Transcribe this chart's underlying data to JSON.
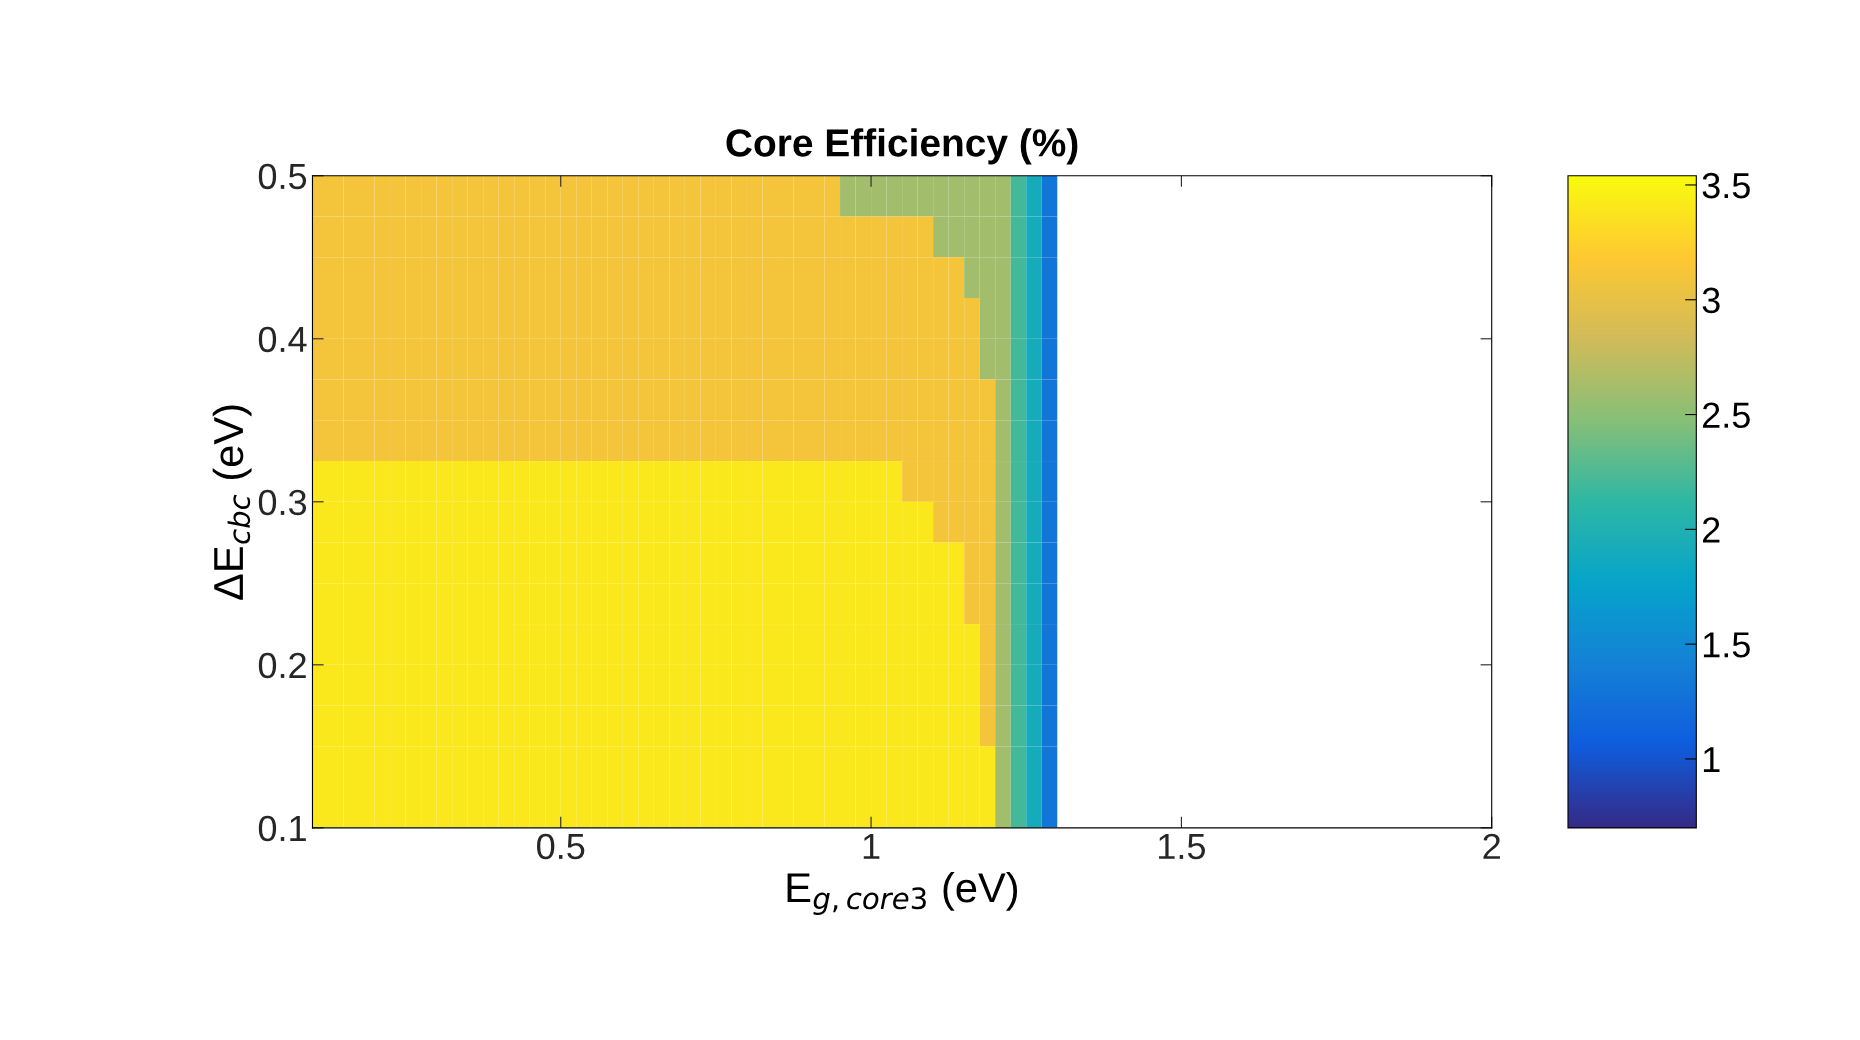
{
  "chart_data": {
    "type": "heatmap",
    "title": "Core Efficiency (%)",
    "xlabel": "E$_{g,core3}$ (eV)",
    "ylabel": "ΔE$_{cbc}$ (eV)",
    "cells": [
      [
        3.1,
        3.1,
        3.1,
        3.1,
        3.1,
        3.1,
        3.1,
        3.1,
        3.1,
        3.1,
        3.1,
        3.1,
        3.1,
        3.1,
        3.1,
        3.1,
        3.1,
        3.1,
        3.1,
        3.1,
        3.1,
        3.1,
        3.1,
        3.1,
        3.1,
        3.1,
        3.1,
        3.1,
        3.1,
        3.1,
        3.1,
        3.1,
        3.1,
        3.1,
        2.6,
        2.6,
        2.6,
        2.6,
        2.6,
        2.6,
        2.6,
        2.6,
        2.6,
        2.6,
        2.6,
        2.2,
        1.9,
        1.3,
        null,
        null,
        null,
        null,
        null,
        null,
        null,
        null,
        null,
        null,
        null,
        null,
        null,
        null,
        null,
        null,
        null,
        null,
        null,
        null,
        null,
        null,
        null,
        null,
        null,
        null,
        null,
        null
      ],
      [
        3.1,
        3.1,
        3.1,
        3.1,
        3.1,
        3.1,
        3.1,
        3.1,
        3.1,
        3.1,
        3.1,
        3.1,
        3.1,
        3.1,
        3.1,
        3.1,
        3.1,
        3.1,
        3.1,
        3.1,
        3.1,
        3.1,
        3.1,
        3.1,
        3.1,
        3.1,
        3.1,
        3.1,
        3.1,
        3.1,
        3.1,
        3.1,
        3.1,
        3.1,
        3.1,
        3.1,
        3.1,
        3.1,
        3.1,
        3.1,
        2.6,
        2.6,
        2.6,
        2.6,
        2.6,
        2.2,
        1.9,
        1.3,
        null,
        null,
        null,
        null,
        null,
        null,
        null,
        null,
        null,
        null,
        null,
        null,
        null,
        null,
        null,
        null,
        null,
        null,
        null,
        null,
        null,
        null,
        null,
        null,
        null,
        null,
        null,
        null
      ],
      [
        3.1,
        3.1,
        3.1,
        3.1,
        3.1,
        3.1,
        3.1,
        3.1,
        3.1,
        3.1,
        3.1,
        3.1,
        3.1,
        3.1,
        3.1,
        3.1,
        3.1,
        3.1,
        3.1,
        3.1,
        3.1,
        3.1,
        3.1,
        3.1,
        3.1,
        3.1,
        3.1,
        3.1,
        3.1,
        3.1,
        3.1,
        3.1,
        3.1,
        3.1,
        3.1,
        3.1,
        3.1,
        3.1,
        3.1,
        3.1,
        3.1,
        3.1,
        2.6,
        2.6,
        2.6,
        2.2,
        1.9,
        1.3,
        null,
        null,
        null,
        null,
        null,
        null,
        null,
        null,
        null,
        null,
        null,
        null,
        null,
        null,
        null,
        null,
        null,
        null,
        null,
        null,
        null,
        null,
        null,
        null,
        null,
        null,
        null,
        null
      ],
      [
        3.1,
        3.1,
        3.1,
        3.1,
        3.1,
        3.1,
        3.1,
        3.1,
        3.1,
        3.1,
        3.1,
        3.1,
        3.1,
        3.1,
        3.1,
        3.1,
        3.1,
        3.1,
        3.1,
        3.1,
        3.1,
        3.1,
        3.1,
        3.1,
        3.1,
        3.1,
        3.1,
        3.1,
        3.1,
        3.1,
        3.1,
        3.1,
        3.1,
        3.1,
        3.1,
        3.1,
        3.1,
        3.1,
        3.1,
        3.1,
        3.1,
        3.1,
        3.1,
        2.6,
        2.6,
        2.2,
        1.9,
        1.3,
        null,
        null,
        null,
        null,
        null,
        null,
        null,
        null,
        null,
        null,
        null,
        null,
        null,
        null,
        null,
        null,
        null,
        null,
        null,
        null,
        null,
        null,
        null,
        null,
        null,
        null,
        null,
        null
      ],
      [
        3.1,
        3.1,
        3.1,
        3.1,
        3.1,
        3.1,
        3.1,
        3.1,
        3.1,
        3.1,
        3.1,
        3.1,
        3.1,
        3.1,
        3.1,
        3.1,
        3.1,
        3.1,
        3.1,
        3.1,
        3.1,
        3.1,
        3.1,
        3.1,
        3.1,
        3.1,
        3.1,
        3.1,
        3.1,
        3.1,
        3.1,
        3.1,
        3.1,
        3.1,
        3.1,
        3.1,
        3.1,
        3.1,
        3.1,
        3.1,
        3.1,
        3.1,
        3.1,
        2.6,
        2.6,
        2.2,
        1.9,
        1.3,
        null,
        null,
        null,
        null,
        null,
        null,
        null,
        null,
        null,
        null,
        null,
        null,
        null,
        null,
        null,
        null,
        null,
        null,
        null,
        null,
        null,
        null,
        null,
        null,
        null,
        null,
        null,
        null
      ],
      [
        3.1,
        3.1,
        3.1,
        3.1,
        3.1,
        3.1,
        3.1,
        3.1,
        3.1,
        3.1,
        3.1,
        3.1,
        3.1,
        3.1,
        3.1,
        3.1,
        3.1,
        3.1,
        3.1,
        3.1,
        3.1,
        3.1,
        3.1,
        3.1,
        3.1,
        3.1,
        3.1,
        3.1,
        3.1,
        3.1,
        3.1,
        3.1,
        3.1,
        3.1,
        3.1,
        3.1,
        3.1,
        3.1,
        3.1,
        3.1,
        3.1,
        3.1,
        3.1,
        3.1,
        2.6,
        2.2,
        1.9,
        1.3,
        null,
        null,
        null,
        null,
        null,
        null,
        null,
        null,
        null,
        null,
        null,
        null,
        null,
        null,
        null,
        null,
        null,
        null,
        null,
        null,
        null,
        null,
        null,
        null,
        null,
        null,
        null,
        null
      ],
      [
        3.1,
        3.1,
        3.1,
        3.1,
        3.1,
        3.1,
        3.1,
        3.1,
        3.1,
        3.1,
        3.1,
        3.1,
        3.1,
        3.1,
        3.1,
        3.1,
        3.1,
        3.1,
        3.1,
        3.1,
        3.1,
        3.1,
        3.1,
        3.1,
        3.1,
        3.1,
        3.1,
        3.1,
        3.1,
        3.1,
        3.1,
        3.1,
        3.1,
        3.1,
        3.1,
        3.1,
        3.1,
        3.1,
        3.1,
        3.1,
        3.1,
        3.1,
        3.1,
        3.1,
        2.6,
        2.2,
        1.9,
        1.3,
        null,
        null,
        null,
        null,
        null,
        null,
        null,
        null,
        null,
        null,
        null,
        null,
        null,
        null,
        null,
        null,
        null,
        null,
        null,
        null,
        null,
        null,
        null,
        null,
        null,
        null,
        null,
        null
      ],
      [
        3.4,
        3.4,
        3.4,
        3.4,
        3.4,
        3.4,
        3.4,
        3.4,
        3.4,
        3.4,
        3.4,
        3.4,
        3.4,
        3.4,
        3.4,
        3.4,
        3.4,
        3.4,
        3.4,
        3.4,
        3.4,
        3.4,
        3.4,
        3.4,
        3.4,
        3.4,
        3.4,
        3.4,
        3.4,
        3.4,
        3.4,
        3.4,
        3.4,
        3.4,
        3.4,
        3.4,
        3.4,
        3.4,
        3.1,
        3.1,
        3.1,
        3.1,
        3.1,
        3.1,
        2.6,
        2.2,
        1.9,
        1.3,
        null,
        null,
        null,
        null,
        null,
        null,
        null,
        null,
        null,
        null,
        null,
        null,
        null,
        null,
        null,
        null,
        null,
        null,
        null,
        null,
        null,
        null,
        null,
        null,
        null,
        null,
        null,
        null
      ],
      [
        3.4,
        3.4,
        3.4,
        3.4,
        3.4,
        3.4,
        3.4,
        3.4,
        3.4,
        3.4,
        3.4,
        3.4,
        3.4,
        3.4,
        3.4,
        3.4,
        3.4,
        3.4,
        3.4,
        3.4,
        3.4,
        3.4,
        3.4,
        3.4,
        3.4,
        3.4,
        3.4,
        3.4,
        3.4,
        3.4,
        3.4,
        3.4,
        3.4,
        3.4,
        3.4,
        3.4,
        3.4,
        3.4,
        3.4,
        3.4,
        3.1,
        3.1,
        3.1,
        3.1,
        2.6,
        2.2,
        1.9,
        1.3,
        null,
        null,
        null,
        null,
        null,
        null,
        null,
        null,
        null,
        null,
        null,
        null,
        null,
        null,
        null,
        null,
        null,
        null,
        null,
        null,
        null,
        null,
        null,
        null,
        null,
        null,
        null,
        null
      ],
      [
        3.4,
        3.4,
        3.4,
        3.4,
        3.4,
        3.4,
        3.4,
        3.4,
        3.4,
        3.4,
        3.4,
        3.4,
        3.4,
        3.4,
        3.4,
        3.4,
        3.4,
        3.4,
        3.4,
        3.4,
        3.4,
        3.4,
        3.4,
        3.4,
        3.4,
        3.4,
        3.4,
        3.4,
        3.4,
        3.4,
        3.4,
        3.4,
        3.4,
        3.4,
        3.4,
        3.4,
        3.4,
        3.4,
        3.4,
        3.4,
        3.4,
        3.4,
        3.1,
        3.1,
        2.6,
        2.2,
        1.9,
        1.3,
        null,
        null,
        null,
        null,
        null,
        null,
        null,
        null,
        null,
        null,
        null,
        null,
        null,
        null,
        null,
        null,
        null,
        null,
        null,
        null,
        null,
        null,
        null,
        null,
        null,
        null,
        null,
        null
      ],
      [
        3.4,
        3.4,
        3.4,
        3.4,
        3.4,
        3.4,
        3.4,
        3.4,
        3.4,
        3.4,
        3.4,
        3.4,
        3.4,
        3.4,
        3.4,
        3.4,
        3.4,
        3.4,
        3.4,
        3.4,
        3.4,
        3.4,
        3.4,
        3.4,
        3.4,
        3.4,
        3.4,
        3.4,
        3.4,
        3.4,
        3.4,
        3.4,
        3.4,
        3.4,
        3.4,
        3.4,
        3.4,
        3.4,
        3.4,
        3.4,
        3.4,
        3.4,
        3.1,
        3.1,
        2.6,
        2.2,
        1.9,
        1.3,
        null,
        null,
        null,
        null,
        null,
        null,
        null,
        null,
        null,
        null,
        null,
        null,
        null,
        null,
        null,
        null,
        null,
        null,
        null,
        null,
        null,
        null,
        null,
        null,
        null,
        null,
        null,
        null
      ],
      [
        3.4,
        3.4,
        3.4,
        3.4,
        3.4,
        3.4,
        3.4,
        3.4,
        3.4,
        3.4,
        3.4,
        3.4,
        3.4,
        3.4,
        3.4,
        3.4,
        3.4,
        3.4,
        3.4,
        3.4,
        3.4,
        3.4,
        3.4,
        3.4,
        3.4,
        3.4,
        3.4,
        3.4,
        3.4,
        3.4,
        3.4,
        3.4,
        3.4,
        3.4,
        3.4,
        3.4,
        3.4,
        3.4,
        3.4,
        3.4,
        3.4,
        3.4,
        3.4,
        3.1,
        2.6,
        2.2,
        1.9,
        1.3,
        null,
        null,
        null,
        null,
        null,
        null,
        null,
        null,
        null,
        null,
        null,
        null,
        null,
        null,
        null,
        null,
        null,
        null,
        null,
        null,
        null,
        null,
        null,
        null,
        null,
        null,
        null,
        null
      ],
      [
        3.4,
        3.4,
        3.4,
        3.4,
        3.4,
        3.4,
        3.4,
        3.4,
        3.4,
        3.4,
        3.4,
        3.4,
        3.4,
        3.4,
        3.4,
        3.4,
        3.4,
        3.4,
        3.4,
        3.4,
        3.4,
        3.4,
        3.4,
        3.4,
        3.4,
        3.4,
        3.4,
        3.4,
        3.4,
        3.4,
        3.4,
        3.4,
        3.4,
        3.4,
        3.4,
        3.4,
        3.4,
        3.4,
        3.4,
        3.4,
        3.4,
        3.4,
        3.4,
        3.1,
        2.6,
        2.2,
        1.9,
        1.3,
        null,
        null,
        null,
        null,
        null,
        null,
        null,
        null,
        null,
        null,
        null,
        null,
        null,
        null,
        null,
        null,
        null,
        null,
        null,
        null,
        null,
        null,
        null,
        null,
        null,
        null,
        null,
        null
      ],
      [
        3.4,
        3.4,
        3.4,
        3.4,
        3.4,
        3.4,
        3.4,
        3.4,
        3.4,
        3.4,
        3.4,
        3.4,
        3.4,
        3.4,
        3.4,
        3.4,
        3.4,
        3.4,
        3.4,
        3.4,
        3.4,
        3.4,
        3.4,
        3.4,
        3.4,
        3.4,
        3.4,
        3.4,
        3.4,
        3.4,
        3.4,
        3.4,
        3.4,
        3.4,
        3.4,
        3.4,
        3.4,
        3.4,
        3.4,
        3.4,
        3.4,
        3.4,
        3.4,
        3.1,
        2.6,
        2.2,
        1.9,
        1.3,
        null,
        null,
        null,
        null,
        null,
        null,
        null,
        null,
        null,
        null,
        null,
        null,
        null,
        null,
        null,
        null,
        null,
        null,
        null,
        null,
        null,
        null,
        null,
        null,
        null,
        null,
        null,
        null
      ],
      [
        3.4,
        3.4,
        3.4,
        3.4,
        3.4,
        3.4,
        3.4,
        3.4,
        3.4,
        3.4,
        3.4,
        3.4,
        3.4,
        3.4,
        3.4,
        3.4,
        3.4,
        3.4,
        3.4,
        3.4,
        3.4,
        3.4,
        3.4,
        3.4,
        3.4,
        3.4,
        3.4,
        3.4,
        3.4,
        3.4,
        3.4,
        3.4,
        3.4,
        3.4,
        3.4,
        3.4,
        3.4,
        3.4,
        3.4,
        3.4,
        3.4,
        3.4,
        3.4,
        3.4,
        2.6,
        2.2,
        1.9,
        1.3,
        null,
        null,
        null,
        null,
        null,
        null,
        null,
        null,
        null,
        null,
        null,
        null,
        null,
        null,
        null,
        null,
        null,
        null,
        null,
        null,
        null,
        null,
        null,
        null,
        null,
        null,
        null,
        null
      ],
      [
        3.4,
        3.4,
        3.4,
        3.4,
        3.4,
        3.4,
        3.4,
        3.4,
        3.4,
        3.4,
        3.4,
        3.4,
        3.4,
        3.4,
        3.4,
        3.4,
        3.4,
        3.4,
        3.4,
        3.4,
        3.4,
        3.4,
        3.4,
        3.4,
        3.4,
        3.4,
        3.4,
        3.4,
        3.4,
        3.4,
        3.4,
        3.4,
        3.4,
        3.4,
        3.4,
        3.4,
        3.4,
        3.4,
        3.4,
        3.4,
        3.4,
        3.4,
        3.4,
        3.4,
        2.6,
        2.2,
        1.9,
        1.3,
        null,
        null,
        null,
        null,
        null,
        null,
        null,
        null,
        null,
        null,
        null,
        null,
        null,
        null,
        null,
        null,
        null,
        null,
        null,
        null,
        null,
        null,
        null,
        null,
        null,
        null,
        null,
        null
      ]
    ],
    "xlim": [
      0.1,
      2
    ],
    "ylim": [
      0.1,
      0.5
    ],
    "xticks": [
      0.5,
      1,
      1.5,
      2
    ],
    "yticks": [
      0.1,
      0.2,
      0.3,
      0.4,
      0.5
    ],
    "clim": [
      0.7,
      3.54
    ],
    "cticks": [
      1,
      1.5,
      2,
      2.5,
      3,
      3.5
    ],
    "grid": false
  }
}
